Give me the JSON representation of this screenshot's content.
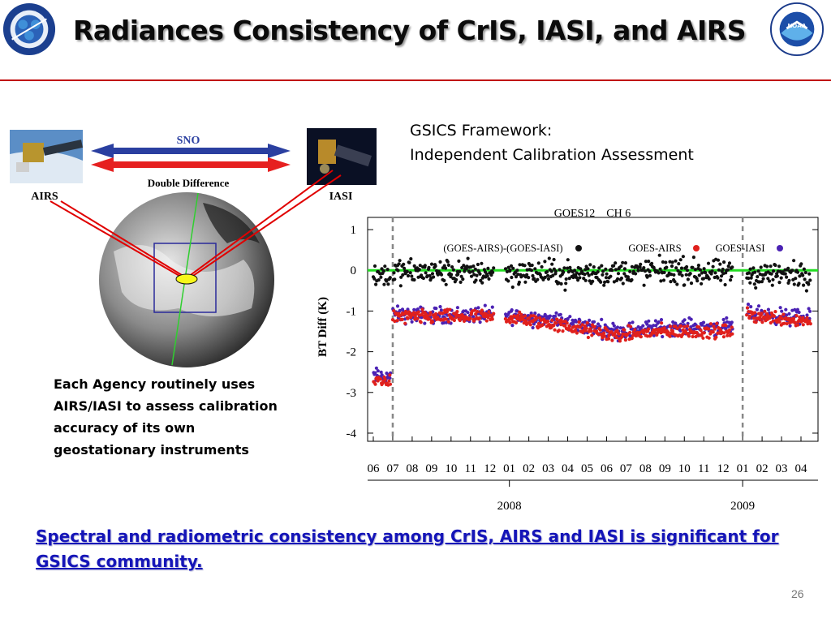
{
  "slide": {
    "title": "Radiances Consistency of CrIS, IASI, and AIRS",
    "gsics_line1": "GSICS Framework:",
    "gsics_line2": "Independent Calibration Assessment",
    "agency_text": "Each Agency routinely uses AIRS/IASI to assess calibration accuracy of  its own geostationary instruments",
    "bottom_text": "Spectral and radiometric consistency among CrIS, AIRS and IASI is significant  for GSICS community.",
    "page_number": "26"
  },
  "logos": {
    "left_text": "NOAA NESDIS STAR",
    "left_inner": [
      "SMC",
      "CORP",
      "SOC"
    ],
    "right_text": "NOAA"
  },
  "diagram": {
    "sno_label": "SNO",
    "double_difference_label": "Double Difference",
    "airs_label": "AIRS",
    "iasi_label": "IASI"
  },
  "colors": {
    "title_rule": "#c00000",
    "bottom_text": "#1515b8",
    "series_dd": "#111111",
    "series_airs": "#e0201c",
    "series_iasi": "#4b22b4",
    "zero_line": "#22dd22",
    "sno_arrow_blue": "#2a3fa0",
    "sno_arrow_red": "#e62020"
  },
  "chart_data": {
    "type": "scatter",
    "title": "GOES12    CH 6",
    "ylabel": "BT Diff (K)",
    "xlabel": "",
    "ylim": [
      -4.2,
      1.3
    ],
    "yticks": [
      1,
      0,
      -1,
      -2,
      -3,
      -4
    ],
    "grid": false,
    "legend_position": "top",
    "x_ticks": [
      "06",
      "07",
      "08",
      "09",
      "10",
      "11",
      "12",
      "01",
      "02",
      "03",
      "04",
      "05",
      "06",
      "07",
      "08",
      "09",
      "10",
      "11",
      "12",
      "01",
      "02",
      "03",
      "04"
    ],
    "year_labels": [
      {
        "label": "2008",
        "at_tick": 7
      },
      {
        "label": "2009",
        "at_tick": 19
      }
    ],
    "vertical_dashed_lines_at_tick": [
      1,
      19
    ],
    "zero_line": 0,
    "series": [
      {
        "name": "(GOES-AIRS)-(GOES-IASI)",
        "marker": "black",
        "segments": [
          {
            "x_start": 0.0,
            "x_end": 0.9,
            "y_start": -0.1,
            "y_end": -0.1
          },
          {
            "x_start": 1.0,
            "x_end": 6.2,
            "y_start": -0.05,
            "y_end": -0.05
          },
          {
            "x_start": 6.8,
            "x_end": 11.0,
            "y_start": -0.05,
            "y_end": -0.1
          },
          {
            "x_start": 11.0,
            "x_end": 15.0,
            "y_start": -0.1,
            "y_end": 0.0
          },
          {
            "x_start": 15.0,
            "x_end": 18.5,
            "y_start": 0.0,
            "y_end": -0.1
          },
          {
            "x_start": 19.2,
            "x_end": 22.5,
            "y_start": -0.1,
            "y_end": -0.1
          }
        ]
      },
      {
        "name": "GOES-AIRS",
        "marker": "red",
        "segments": [
          {
            "x_start": 0.0,
            "x_end": 0.9,
            "y_start": -2.7,
            "y_end": -2.7
          },
          {
            "x_start": 1.0,
            "x_end": 6.2,
            "y_start": -1.15,
            "y_end": -1.15
          },
          {
            "x_start": 6.8,
            "x_end": 9.0,
            "y_start": -1.15,
            "y_end": -1.3
          },
          {
            "x_start": 9.0,
            "x_end": 12.5,
            "y_start": -1.3,
            "y_end": -1.6
          },
          {
            "x_start": 12.5,
            "x_end": 15.0,
            "y_start": -1.6,
            "y_end": -1.5
          },
          {
            "x_start": 15.0,
            "x_end": 18.5,
            "y_start": -1.5,
            "y_end": -1.5
          },
          {
            "x_start": 19.2,
            "x_end": 22.5,
            "y_start": -1.1,
            "y_end": -1.25
          }
        ]
      },
      {
        "name": "GOES-IASI",
        "marker": "purple",
        "segments": [
          {
            "x_start": 0.0,
            "x_end": 0.9,
            "y_start": -2.6,
            "y_end": -2.6
          },
          {
            "x_start": 1.0,
            "x_end": 6.2,
            "y_start": -1.1,
            "y_end": -1.1
          },
          {
            "x_start": 6.8,
            "x_end": 9.0,
            "y_start": -1.1,
            "y_end": -1.2
          },
          {
            "x_start": 9.0,
            "x_end": 12.5,
            "y_start": -1.2,
            "y_end": -1.5
          },
          {
            "x_start": 12.5,
            "x_end": 15.0,
            "y_start": -1.5,
            "y_end": -1.4
          },
          {
            "x_start": 15.0,
            "x_end": 18.5,
            "y_start": -1.4,
            "y_end": -1.4
          },
          {
            "x_start": 19.2,
            "x_end": 22.5,
            "y_start": -1.05,
            "y_end": -1.2
          }
        ]
      }
    ]
  }
}
